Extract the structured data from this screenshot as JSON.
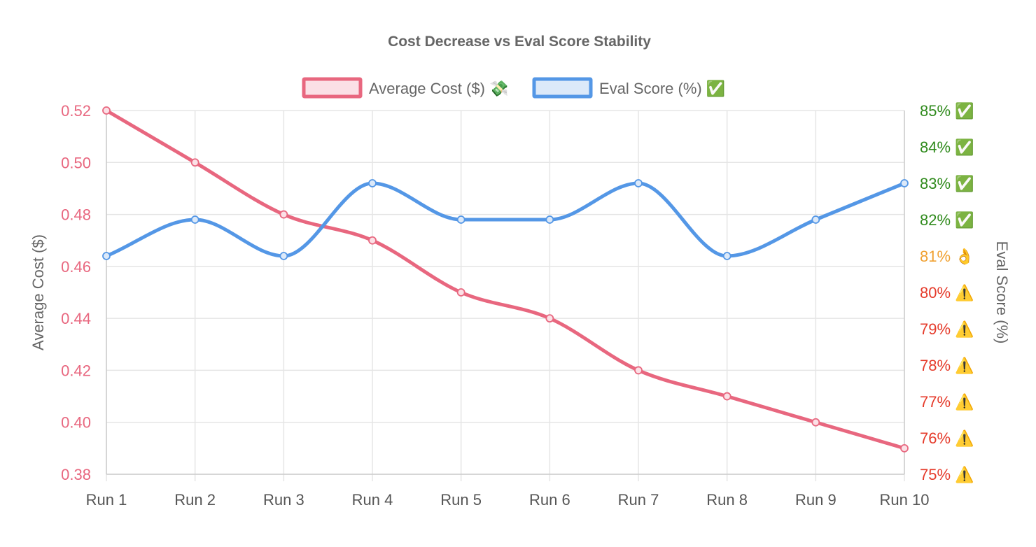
{
  "chart_data": {
    "type": "line",
    "title": "Cost Decrease vs Eval Score Stability",
    "categories": [
      "Run 1",
      "Run 2",
      "Run 3",
      "Run 4",
      "Run 5",
      "Run 6",
      "Run 7",
      "Run 8",
      "Run 9",
      "Run 10"
    ],
    "series": [
      {
        "name": "Average Cost ($) 💸",
        "axis": "left",
        "color": "#e8677f",
        "fill": "#fbe0e6",
        "values": [
          0.52,
          0.5,
          0.48,
          0.47,
          0.45,
          0.44,
          0.42,
          0.41,
          0.4,
          0.39
        ]
      },
      {
        "name": "Eval Score (%) ✅",
        "axis": "right",
        "color": "#5497e6",
        "fill": "#dce9f9",
        "values": [
          81,
          82,
          81,
          83,
          82,
          82,
          83,
          81,
          82,
          83
        ]
      }
    ],
    "y_left": {
      "label": "Average Cost ($)",
      "range": [
        0.38,
        0.52
      ],
      "ticks": [
        "0.52",
        "0.50",
        "0.48",
        "0.46",
        "0.44",
        "0.42",
        "0.40",
        "0.38"
      ],
      "tick_color": "#e8677f"
    },
    "y_right": {
      "label": "Eval Score (%)",
      "range": [
        75,
        85
      ],
      "ticks": [
        {
          "value": 85,
          "label": "85% ✅",
          "color": "#2f8a1c"
        },
        {
          "value": 84,
          "label": "84% ✅",
          "color": "#2f8a1c"
        },
        {
          "value": 83,
          "label": "83% ✅",
          "color": "#2f8a1c"
        },
        {
          "value": 82,
          "label": "82% ✅",
          "color": "#2f8a1c"
        },
        {
          "value": 81,
          "label": "81% 👌",
          "color": "#f0a030"
        },
        {
          "value": 80,
          "label": "80% ⚠️",
          "color": "#e53a2a"
        },
        {
          "value": 79,
          "label": "79% ⚠️",
          "color": "#e53a2a"
        },
        {
          "value": 78,
          "label": "78% ⚠️",
          "color": "#e53a2a"
        },
        {
          "value": 77,
          "label": "77% ⚠️",
          "color": "#e53a2a"
        },
        {
          "value": 76,
          "label": "76% ⚠️",
          "color": "#e53a2a"
        },
        {
          "value": 75,
          "label": "75% ⚠️",
          "color": "#e53a2a"
        }
      ]
    },
    "x_tick_color": "#555555",
    "legend_position": "top-center",
    "grid": true
  }
}
